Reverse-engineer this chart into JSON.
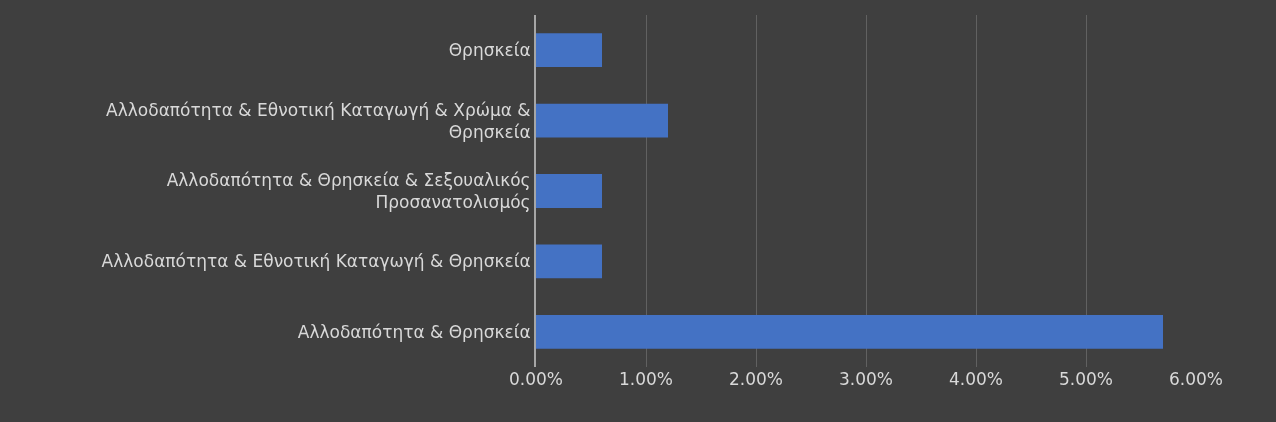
{
  "chart_data": {
    "type": "bar",
    "orientation": "horizontal",
    "categories": [
      "Θρησκεία",
      "Αλλοδαπότητα & Εθνοτική Καταγωγή & Χρώμα & Θρησκεία",
      "Αλλοδαπότητα & Θρησκεία & Σεξουαλικός Προσανατολισμός",
      "Αλλοδαπότητα & Εθνοτική Καταγωγή & Θρησκεία",
      "Αλλοδαπότητα & Θρησκεία"
    ],
    "values": [
      0.6,
      1.2,
      0.6,
      0.6,
      5.7
    ],
    "color": "#4472c4",
    "xlim": [
      0,
      6
    ],
    "xticks": [
      {
        "value": 0,
        "label": "0.00%"
      },
      {
        "value": 1,
        "label": "1.00%"
      },
      {
        "value": 2,
        "label": "2.00%"
      },
      {
        "value": 3,
        "label": "3.00%"
      },
      {
        "value": 4,
        "label": "4.00%"
      },
      {
        "value": 5,
        "label": "5.00%"
      },
      {
        "value": 6,
        "label": "6.00%"
      }
    ],
    "grid": "x"
  }
}
